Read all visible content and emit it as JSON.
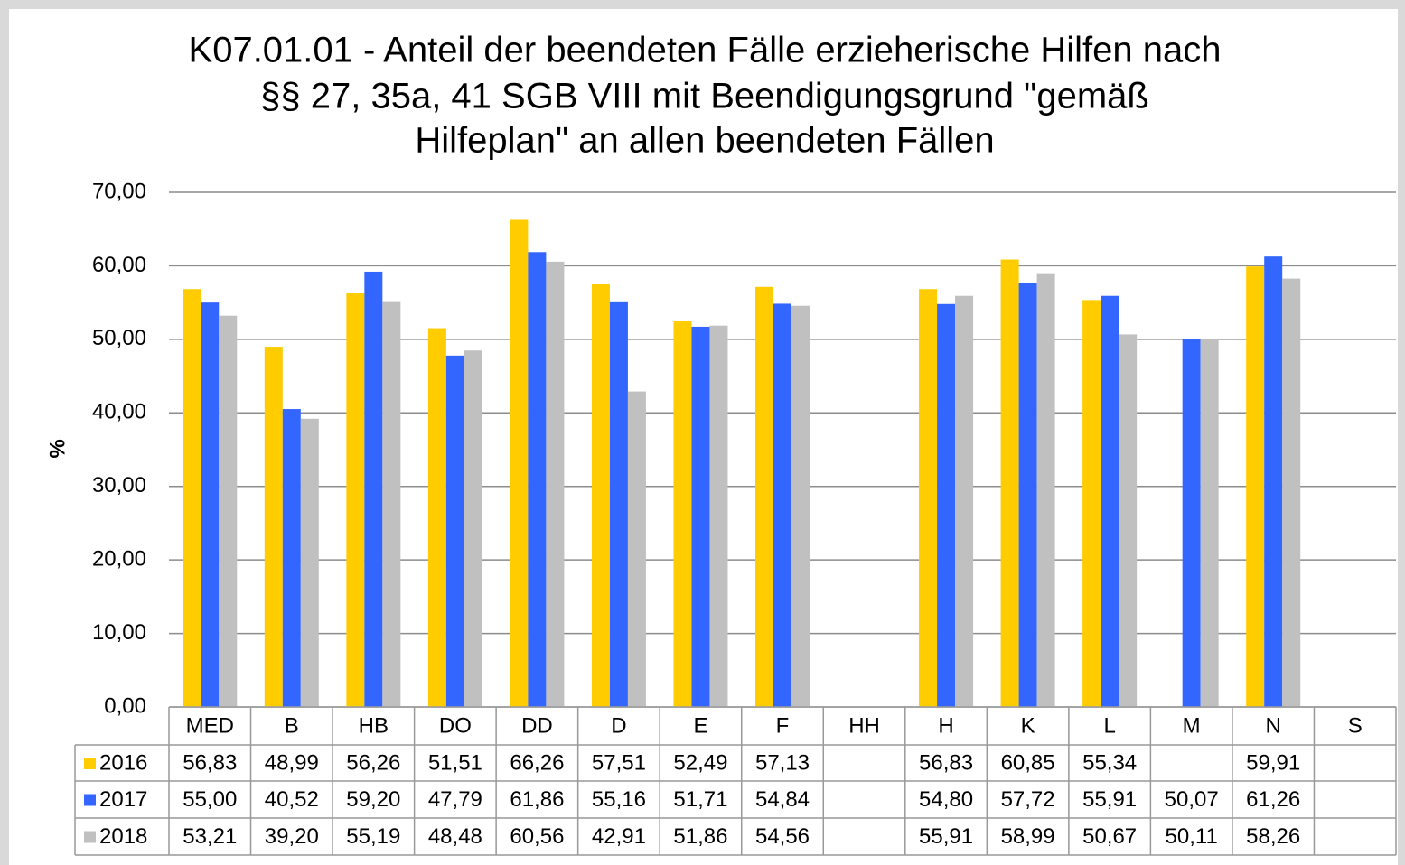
{
  "chart_data": {
    "type": "bar",
    "title": [
      "K07.01.01 - Anteil der beendeten Fälle erzieherische Hilfen nach",
      "§§ 27, 35a, 41 SGB VIII mit Beendigungsgrund \"gemäß",
      "Hilfeplan\" an allen beendeten Fällen"
    ],
    "y_label": "%",
    "categories": [
      "MED",
      "B",
      "HB",
      "DO",
      "DD",
      "D",
      "E",
      "F",
      "HH",
      "H",
      "K",
      "L",
      "M",
      "N",
      "S"
    ],
    "series": [
      {
        "name": "2016",
        "color": "#ffcc00",
        "values": [
          56.83,
          48.99,
          56.26,
          51.51,
          66.26,
          57.51,
          52.49,
          57.13,
          null,
          56.83,
          60.85,
          55.34,
          null,
          59.91,
          null
        ],
        "value_labels": [
          "56,83",
          "48,99",
          "56,26",
          "51,51",
          "66,26",
          "57,51",
          "52,49",
          "57,13",
          null,
          "56,83",
          "60,85",
          "55,34",
          null,
          "59,91",
          null
        ]
      },
      {
        "name": "2017",
        "color": "#3366ff",
        "values": [
          55.0,
          40.52,
          59.2,
          47.79,
          61.86,
          55.16,
          51.71,
          54.84,
          null,
          54.8,
          57.72,
          55.91,
          50.07,
          61.26,
          null
        ],
        "value_labels": [
          "55,00",
          "40,52",
          "59,20",
          "47,79",
          "61,86",
          "55,16",
          "51,71",
          "54,84",
          null,
          "54,80",
          "57,72",
          "55,91",
          "50,07",
          "61,26",
          null
        ]
      },
      {
        "name": "2018",
        "color": "#c0c0c0",
        "values": [
          53.21,
          39.2,
          55.19,
          48.48,
          60.56,
          42.91,
          51.86,
          54.56,
          null,
          55.91,
          58.99,
          50.67,
          50.11,
          58.26,
          null
        ],
        "value_labels": [
          "53,21",
          "39,20",
          "55,19",
          "48,48",
          "60,56",
          "42,91",
          "51,86",
          "54,56",
          null,
          "55,91",
          "58,99",
          "50,67",
          "50,11",
          "58,26",
          null
        ]
      }
    ],
    "ylim": [
      0,
      70
    ],
    "yticks": [
      {
        "value": 0,
        "label": "0,00"
      },
      {
        "value": 10,
        "label": "10,00"
      },
      {
        "value": 20,
        "label": "20,00"
      },
      {
        "value": 30,
        "label": "30,00"
      },
      {
        "value": 40,
        "label": "40,00"
      },
      {
        "value": 50,
        "label": "50,00"
      },
      {
        "value": 60,
        "label": "60,00"
      },
      {
        "value": 70,
        "label": "70,00"
      }
    ],
    "grid": true
  }
}
